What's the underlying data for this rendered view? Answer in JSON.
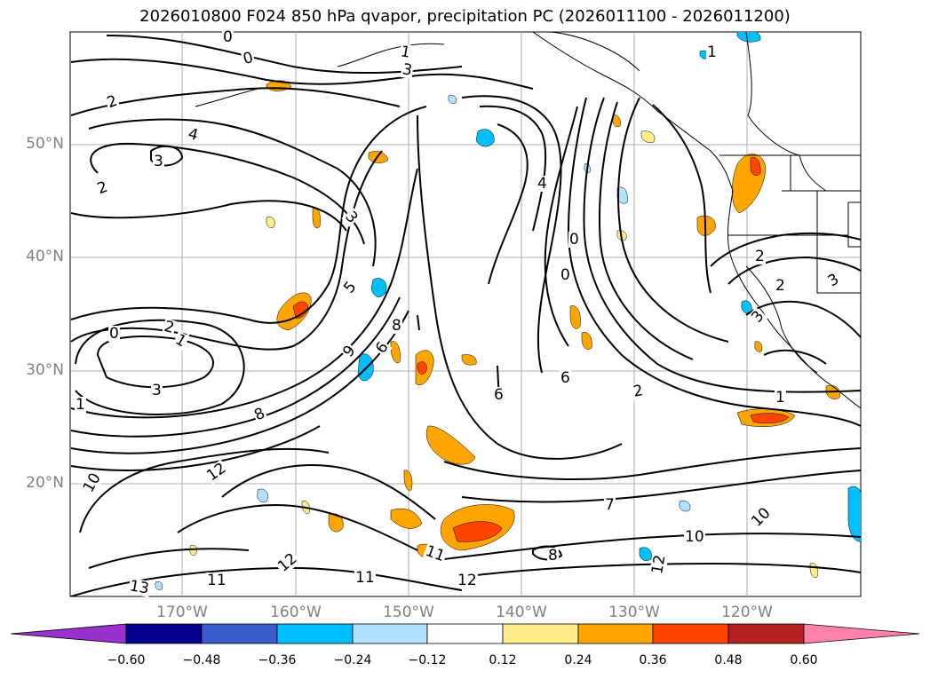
{
  "title": "2026010800 F024 850 hPa qvapor, precipitation PC (2026011100 - 2026011200)",
  "lat_labels": [
    "50°N",
    "40°N",
    "30°N",
    "20°N"
  ],
  "lon_labels": [
    "170°W",
    "160°W",
    "150°W",
    "140°W",
    "130°W",
    "120°W"
  ],
  "contour_labels": [
    "0",
    "0",
    "1",
    "3",
    "2",
    "4",
    "3",
    "2",
    "3",
    "4",
    "0",
    "0",
    "5",
    "6",
    "2",
    "7",
    "8",
    "12",
    "9",
    "10",
    "11",
    "12",
    "13",
    "2",
    "3",
    "7",
    "1",
    "6",
    "6",
    "10",
    "11",
    "12",
    "1",
    "10",
    "8",
    "12",
    "2",
    "2",
    "0",
    "3",
    "3",
    "1",
    "1",
    "8",
    "11",
    "12"
  ],
  "colorbar": {
    "ticks": [
      "−0.60",
      "−0.48",
      "−0.36",
      "−0.24",
      "−0.12",
      "0.12",
      "0.24",
      "0.36",
      "0.48",
      "0.60"
    ],
    "colors": [
      "#9932cc",
      "#00008b",
      "#3a5fcd",
      "#00bfff",
      "#b0e2ff",
      "#ffffff",
      "#ffec8b",
      "#ffa500",
      "#ff4500",
      "#b22222",
      "#ff82ab"
    ]
  }
}
